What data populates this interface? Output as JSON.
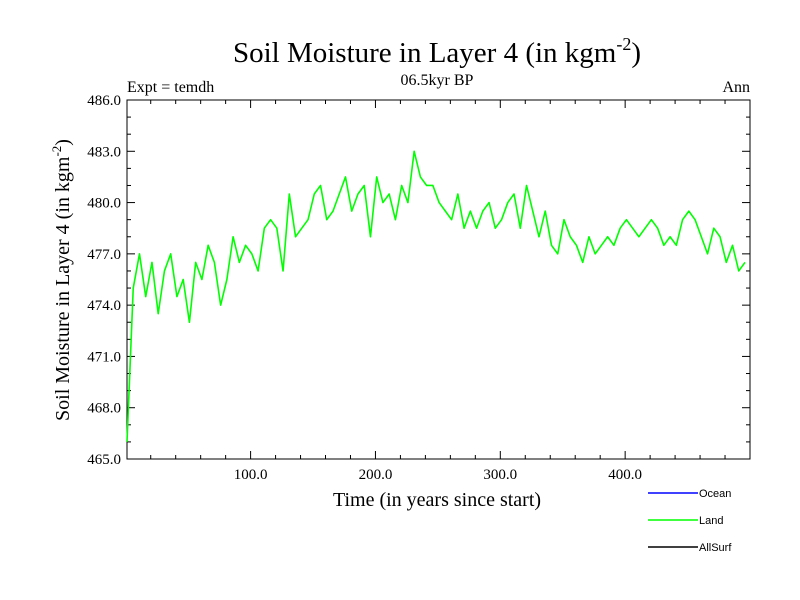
{
  "chart_data": {
    "type": "line",
    "title": "Soil Moisture in Layer 4 (in kgm",
    "title_sup": "-2",
    "title_suffix": ")",
    "left_note": "Expt = temdh",
    "center_note": "06.5kyr BP",
    "right_note": "Ann",
    "xlabel": "Time (in years since start)",
    "ylabel": "Soil Moisture in Layer 4 (in kgm",
    "ylabel_sup": "-2",
    "ylabel_suffix": ")",
    "xlim": [
      1,
      500
    ],
    "ylim": [
      465.0,
      486.0
    ],
    "xticks": [
      {
        "value": 100,
        "label": "100.0"
      },
      {
        "value": 200,
        "label": "200.0"
      },
      {
        "value": 300,
        "label": "300.0"
      },
      {
        "value": 400,
        "label": "400.0"
      }
    ],
    "yticks": [
      {
        "value": 465,
        "label": "465.0"
      },
      {
        "value": 468,
        "label": "468.0"
      },
      {
        "value": 471,
        "label": "471.0"
      },
      {
        "value": 474,
        "label": "474.0"
      },
      {
        "value": 477,
        "label": "477.0"
      },
      {
        "value": 480,
        "label": "480.0"
      },
      {
        "value": 483,
        "label": "483.0"
      },
      {
        "value": 486,
        "label": "486.0"
      }
    ],
    "legend": [
      {
        "name": "Ocean",
        "color": "#0000ff"
      },
      {
        "name": "Land",
        "color": "#00ff00"
      },
      {
        "name": "AllSurf",
        "color": "#000000"
      }
    ],
    "series": [
      {
        "name": "Land",
        "color": "#00ff00",
        "x_start": 1,
        "x_step": 5,
        "values": [
          466.0,
          475.0,
          477.0,
          474.5,
          476.5,
          473.5,
          476.0,
          477.0,
          474.5,
          475.5,
          473.0,
          476.5,
          475.5,
          477.5,
          476.5,
          474.0,
          475.5,
          478.0,
          476.5,
          477.5,
          477.0,
          476.0,
          478.5,
          479.0,
          478.5,
          476.0,
          480.5,
          478.0,
          478.5,
          479.0,
          480.5,
          481.0,
          479.0,
          479.5,
          480.5,
          481.5,
          479.5,
          480.5,
          481.0,
          478.0,
          481.5,
          480.0,
          480.5,
          479.0,
          481.0,
          480.0,
          483.0,
          481.5,
          481.0,
          481.0,
          480.0,
          479.5,
          479.0,
          480.5,
          478.5,
          479.5,
          478.5,
          479.5,
          480.0,
          478.5,
          479.0,
          480.0,
          480.5,
          478.5,
          481.0,
          479.5,
          478.0,
          479.5,
          477.5,
          477.0,
          479.0,
          478.0,
          477.5,
          476.5,
          478.0,
          477.0,
          477.5,
          478.0,
          477.5,
          478.5,
          479.0,
          478.5,
          478.0,
          478.5,
          479.0,
          478.5,
          477.5,
          478.0,
          477.5,
          479.0,
          479.5,
          479.0,
          478.0,
          477.0,
          478.5,
          478.0,
          476.5,
          477.5,
          476.0,
          476.5
        ]
      }
    ]
  }
}
